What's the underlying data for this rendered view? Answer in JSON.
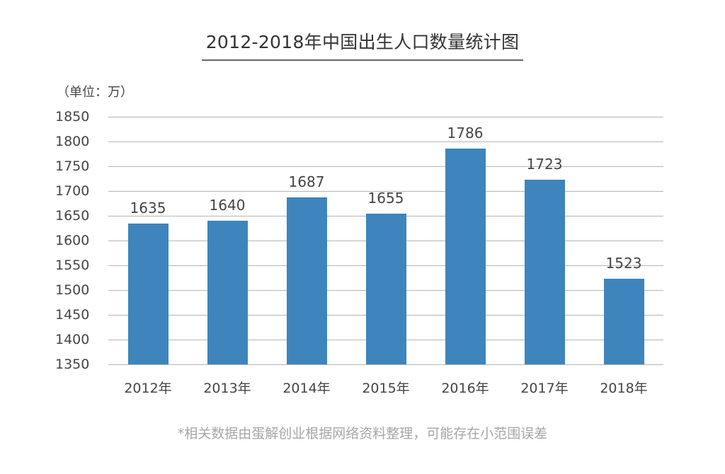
{
  "title": "2012-2018年中国出生人口数量统计图",
  "unit_label": "（单位：万）",
  "footnote": "*相关数据由蛋解创业根据网络资料整理，可能存在小范围误差",
  "colors": {
    "bar": "#3d85bc",
    "grid": "#b5b5b5",
    "text": "#444444",
    "note": "#a6a6a6"
  },
  "chart_data": {
    "type": "bar",
    "title": "2012-2018年中国出生人口数量统计图",
    "xlabel": "",
    "ylabel": "（单位：万）",
    "categories": [
      "2012年",
      "2013年",
      "2014年",
      "2015年",
      "2016年",
      "2017年",
      "2018年"
    ],
    "values": [
      1635,
      1640,
      1687,
      1655,
      1786,
      1723,
      1523
    ],
    "ylim": [
      1350,
      1850
    ],
    "yticks": [
      1850,
      1800,
      1750,
      1700,
      1650,
      1600,
      1550,
      1500,
      1450,
      1400,
      1350
    ],
    "grid": true,
    "legend": "none",
    "data_labels": true
  }
}
